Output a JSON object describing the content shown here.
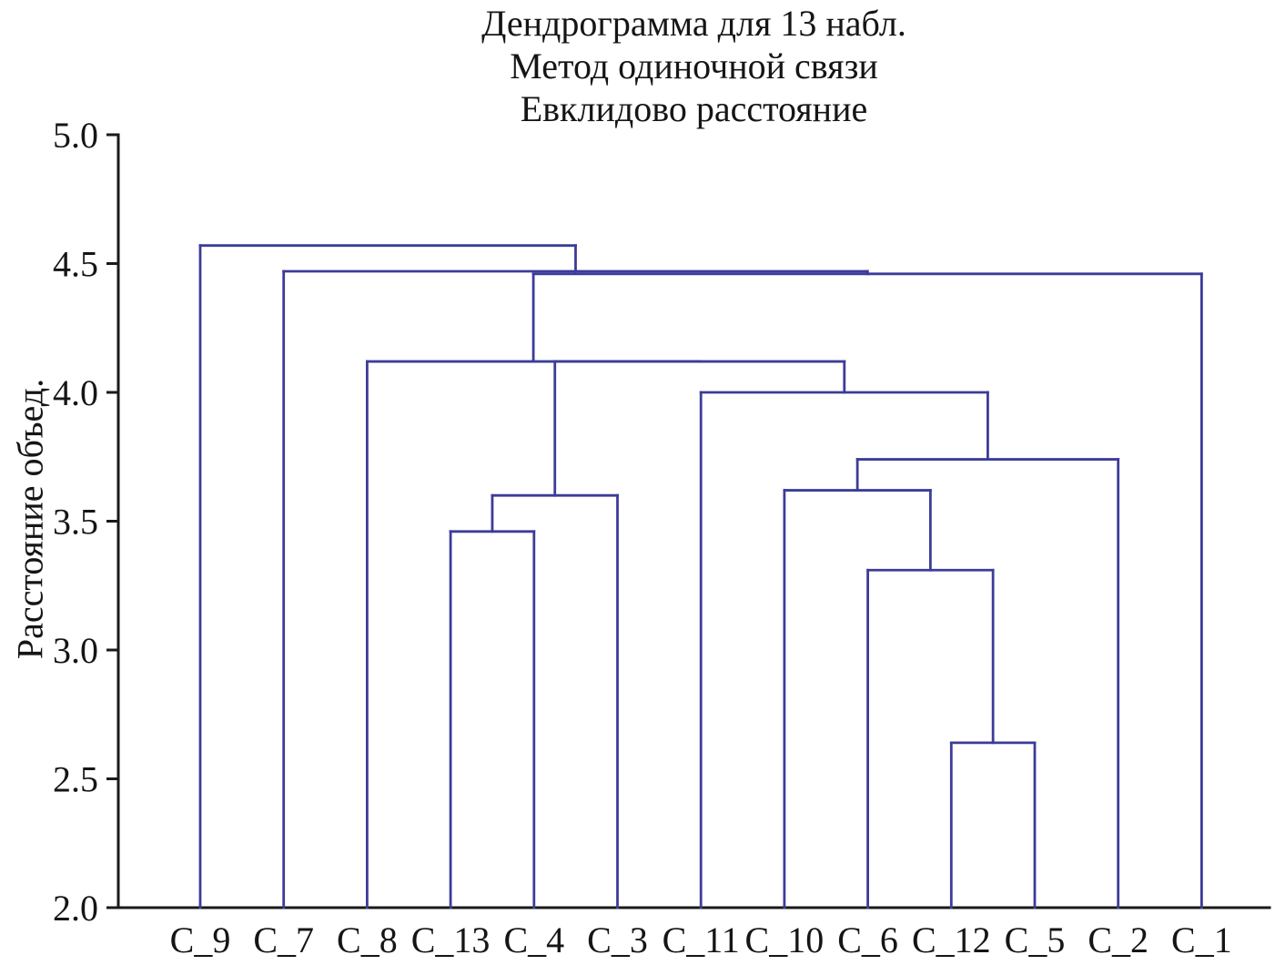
{
  "figure": {
    "background": "#ffffff",
    "link_color": "#3c3c99",
    "axis_color": "#1a1a1a"
  },
  "chart_data": {
    "type": "dendrogram",
    "title": "Дендрограмма для 13 набл.",
    "subtitle_method": "Метод одиночной связи",
    "subtitle_distance": "Евклидово расстояние",
    "ylabel": "Расстояние объед.",
    "ylim": [
      2.0,
      5.0
    ],
    "grid": false,
    "legend": "none",
    "yticks": [
      {
        "value": 5.0,
        "label": "5.0"
      },
      {
        "value": 4.5,
        "label": "4.5"
      },
      {
        "value": 4.0,
        "label": "4.0"
      },
      {
        "value": 3.5,
        "label": "3.5"
      },
      {
        "value": 3.0,
        "label": "3.0"
      },
      {
        "value": 2.5,
        "label": "2.5"
      },
      {
        "value": 2.0,
        "label": "2.0"
      }
    ],
    "leaves": [
      "C_9",
      "C_7",
      "C_8",
      "C_13",
      "C_4",
      "C_3",
      "C_11",
      "C_10",
      "C_6",
      "C_12",
      "C_5",
      "C_2",
      "C_1"
    ],
    "merges": [
      {
        "id": "M1",
        "a": "C_12",
        "b": "C_5",
        "height": 2.64
      },
      {
        "id": "M2",
        "a": "C_6",
        "b": "M1",
        "height": 3.31
      },
      {
        "id": "M3",
        "a": "C_13",
        "b": "C_4",
        "height": 3.46
      },
      {
        "id": "M4",
        "a": "M3",
        "b": "C_3",
        "height": 3.6
      },
      {
        "id": "M5",
        "a": "C_10",
        "b": "M2",
        "height": 3.62
      },
      {
        "id": "M6",
        "a": "M5",
        "b": "C_2",
        "height": 3.74
      },
      {
        "id": "M7",
        "a": "C_11",
        "b": "M6",
        "height": 4.0
      },
      {
        "id": "M8",
        "a": "M4",
        "b": "M7",
        "height": 4.12
      },
      {
        "id": "M9",
        "a": "C_8",
        "b": "M8",
        "height": 4.12
      },
      {
        "id": "M10",
        "a": "M9",
        "b": "C_1",
        "height": 4.46
      },
      {
        "id": "M11",
        "a": "C_7",
        "b": "M10",
        "height": 4.47
      },
      {
        "id": "M12",
        "a": "C_9",
        "b": "M11",
        "height": 4.57
      }
    ]
  }
}
